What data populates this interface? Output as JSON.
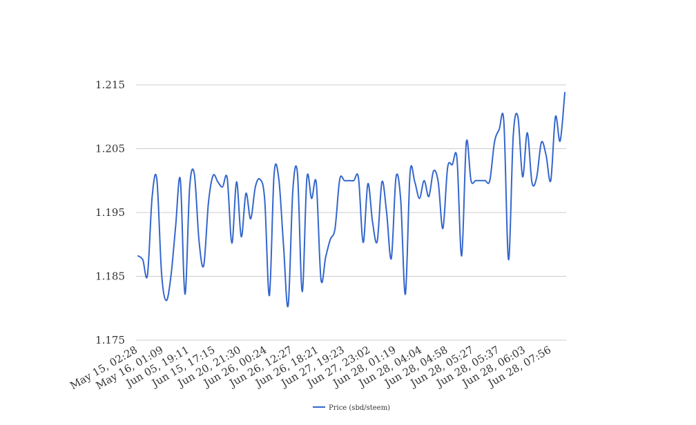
{
  "chart_data": {
    "type": "line",
    "title": "",
    "xlabel": "",
    "ylabel": "",
    "ylim": [
      1.175,
      1.215
    ],
    "y_ticks": [
      "1.215",
      "1.205",
      "1.195",
      "1.185",
      "1.175"
    ],
    "x_tick_labels": [
      "May 15, 02:28",
      "May 16, 01:09",
      "Jun 05, 19:11",
      "Jun 15, 17:15",
      "Jun 20, 21:30",
      "Jun 26, 00:24",
      "Jun 26, 12:27",
      "Jun 26, 18:21",
      "Jun 27, 19:23",
      "Jun 27, 23:02",
      "Jun 28, 01:19",
      "Jun 28, 04:04",
      "Jun 28, 04:58",
      "Jun 28, 05:27",
      "Jun 28, 05:37",
      "Jun 28, 06:03",
      "Jun 28, 07:56"
    ],
    "grid": true,
    "legend": "bottom",
    "series": [
      {
        "name": "Price (sbd/steem)",
        "color": "#3366cc",
        "values": [
          1.1882,
          1.1876,
          1.1852,
          1.1975,
          1.2002,
          1.1855,
          1.1812,
          1.185,
          1.1928,
          1.2002,
          1.1822,
          1.199,
          1.201,
          1.1905,
          1.1867,
          1.1965,
          1.2008,
          1.1998,
          1.199,
          1.2004,
          1.1902,
          1.1998,
          1.1912,
          1.198,
          1.194,
          1.199,
          1.2002,
          1.197,
          1.182,
          1.201,
          1.2003,
          1.19,
          1.1804,
          1.1985,
          1.201,
          1.1826,
          1.2004,
          1.1972,
          1.1996,
          1.1845,
          1.188,
          1.1908,
          1.1925,
          1.2002,
          1.2,
          1.2,
          1.2,
          1.2004,
          1.1903,
          1.1995,
          1.1935,
          1.1905,
          1.1998,
          1.195,
          1.1878,
          1.2005,
          1.197,
          1.1822,
          1.2012,
          1.1998,
          1.1972,
          1.2,
          1.1975,
          1.2015,
          1.1998,
          1.1925,
          1.202,
          1.2025,
          1.2035,
          1.1882,
          1.206,
          1.2,
          1.2,
          1.2,
          1.2,
          1.2,
          1.206,
          1.208,
          1.2092,
          1.1876,
          1.207,
          1.21,
          1.2006,
          1.2075,
          1.1997,
          1.2005,
          1.206,
          1.204,
          1.2,
          1.21,
          1.2062,
          1.2138
        ]
      }
    ]
  }
}
